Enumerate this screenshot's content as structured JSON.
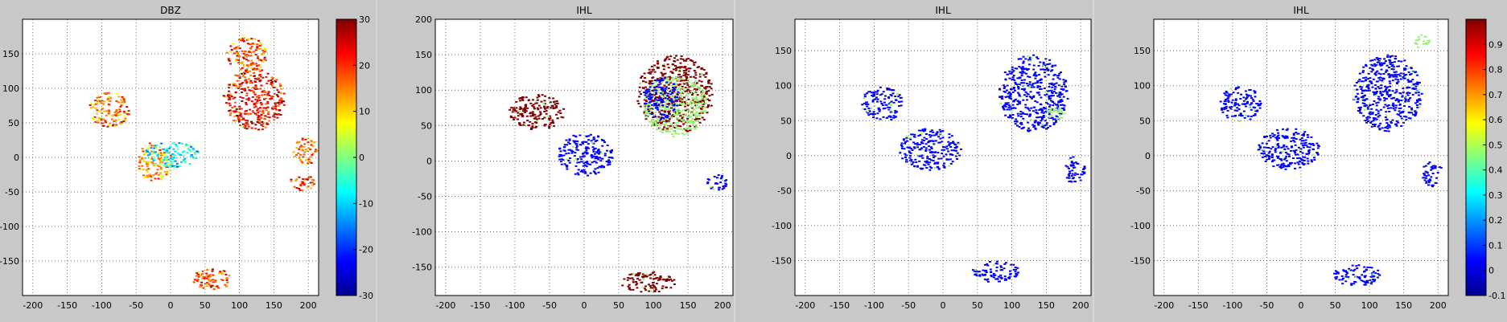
{
  "palette": {
    "background": "#c8c8c8",
    "plot_bg": "#ffffff",
    "grid": "#4a4a4a",
    "axis_text": "#000000",
    "jet_dark_blue": "#00008f",
    "jet_blue": "#0000ff",
    "jet_cyan": "#00ffff",
    "jet_yellow": "#ffff00",
    "jet_orange": "#ff8000",
    "jet_red": "#ff0000",
    "jet_dark_red": "#800000",
    "light_green": "#9cf07a"
  },
  "chart_data": [
    {
      "type": "heatmap",
      "title": "DBZ",
      "xlim": [
        -215,
        215
      ],
      "ylim": [
        -200,
        200
      ],
      "x_ticks": [
        -200,
        -150,
        -100,
        -50,
        0,
        50,
        100,
        150,
        200
      ],
      "y_ticks": [
        150,
        100,
        50,
        0,
        -50,
        -100,
        -150
      ],
      "grid": true,
      "colorbar": {
        "min": -30,
        "max": 30,
        "ticks": [
          30,
          20,
          10,
          0,
          -10,
          -20,
          -30
        ]
      },
      "echo_regions": [
        {
          "cx": 120,
          "cy": 85,
          "rx": 45,
          "ry": 45,
          "level": 22
        },
        {
          "cx": 110,
          "cy": 150,
          "rx": 30,
          "ry": 25,
          "level": 18
        },
        {
          "cx": 195,
          "cy": 10,
          "rx": 18,
          "ry": 20,
          "level": 16
        },
        {
          "cx": 190,
          "cy": -35,
          "rx": 18,
          "ry": 12,
          "level": 20
        },
        {
          "cx": -25,
          "cy": -5,
          "rx": 25,
          "ry": 28,
          "level": 14
        },
        {
          "cx": 0,
          "cy": 5,
          "rx": 40,
          "ry": 18,
          "level": -8
        },
        {
          "cx": -90,
          "cy": 70,
          "rx": 30,
          "ry": 25,
          "level": 16
        },
        {
          "cx": 60,
          "cy": -175,
          "rx": 30,
          "ry": 15,
          "level": 18
        }
      ]
    },
    {
      "type": "heatmap",
      "title": "IHL",
      "xlim": [
        -215,
        215
      ],
      "ylim": [
        -190,
        200
      ],
      "x_ticks": [
        -200,
        -150,
        -100,
        -50,
        0,
        50,
        100,
        150,
        200
      ],
      "y_ticks": [
        200,
        150,
        100,
        50,
        0,
        -50,
        -100,
        -150
      ],
      "grid": true,
      "echo_regions": [
        {
          "cx": 130,
          "cy": 95,
          "rx": 55,
          "ry": 55,
          "class": "dark_red"
        },
        {
          "cx": 130,
          "cy": 80,
          "rx": 45,
          "ry": 45,
          "class": "light_green"
        },
        {
          "cx": 110,
          "cy": 90,
          "rx": 25,
          "ry": 30,
          "class": "blue"
        },
        {
          "cx": 0,
          "cy": 10,
          "rx": 40,
          "ry": 30,
          "class": "blue"
        },
        {
          "cx": -70,
          "cy": 70,
          "rx": 40,
          "ry": 25,
          "class": "dark_red"
        },
        {
          "cx": 190,
          "cy": -30,
          "rx": 15,
          "ry": 12,
          "class": "blue"
        },
        {
          "cx": 90,
          "cy": -170,
          "rx": 40,
          "ry": 15,
          "class": "dark_red"
        }
      ]
    },
    {
      "type": "heatmap",
      "title": "IHL",
      "xlim": [
        -215,
        215
      ],
      "ylim": [
        -200,
        195
      ],
      "x_ticks": [
        -200,
        -150,
        -100,
        -50,
        0,
        50,
        100,
        150,
        200
      ],
      "y_ticks": [
        150,
        100,
        50,
        0,
        -50,
        -100,
        -150
      ],
      "grid": true,
      "echo_regions": [
        {
          "cx": 130,
          "cy": 90,
          "rx": 50,
          "ry": 55,
          "class": "blue"
        },
        {
          "cx": -20,
          "cy": 10,
          "rx": 45,
          "ry": 30,
          "class": "blue"
        },
        {
          "cx": -90,
          "cy": 75,
          "rx": 30,
          "ry": 25,
          "class": "blue"
        },
        {
          "cx": 190,
          "cy": -20,
          "rx": 15,
          "ry": 20,
          "class": "blue"
        },
        {
          "cx": 75,
          "cy": -165,
          "rx": 35,
          "ry": 15,
          "class": "blue"
        },
        {
          "cx": 160,
          "cy": 60,
          "rx": 15,
          "ry": 10,
          "class": "light_green"
        }
      ]
    },
    {
      "type": "heatmap",
      "title": "IHL",
      "xlim": [
        -215,
        215
      ],
      "ylim": [
        -200,
        195
      ],
      "x_ticks": [
        -200,
        -150,
        -100,
        -50,
        0,
        50,
        100,
        150,
        200
      ],
      "y_ticks": [
        150,
        100,
        50,
        0,
        -50,
        -100,
        -150
      ],
      "grid": true,
      "colorbar": {
        "min": -0.1,
        "max": 1.0,
        "ticks": [
          0.9,
          0.8,
          0.7,
          0.6,
          0.5,
          0.4,
          0.3,
          0.2,
          0.1,
          0,
          -0.1
        ]
      },
      "echo_regions": [
        {
          "cx": 125,
          "cy": 90,
          "rx": 50,
          "ry": 55,
          "class": "blue"
        },
        {
          "cx": -20,
          "cy": 10,
          "rx": 45,
          "ry": 30,
          "class": "blue"
        },
        {
          "cx": -90,
          "cy": 75,
          "rx": 30,
          "ry": 25,
          "class": "blue"
        },
        {
          "cx": 190,
          "cy": -25,
          "rx": 15,
          "ry": 18,
          "class": "blue"
        },
        {
          "cx": 80,
          "cy": -170,
          "rx": 35,
          "ry": 15,
          "class": "blue"
        },
        {
          "cx": 175,
          "cy": 165,
          "rx": 12,
          "ry": 10,
          "class": "light_green"
        }
      ]
    }
  ]
}
